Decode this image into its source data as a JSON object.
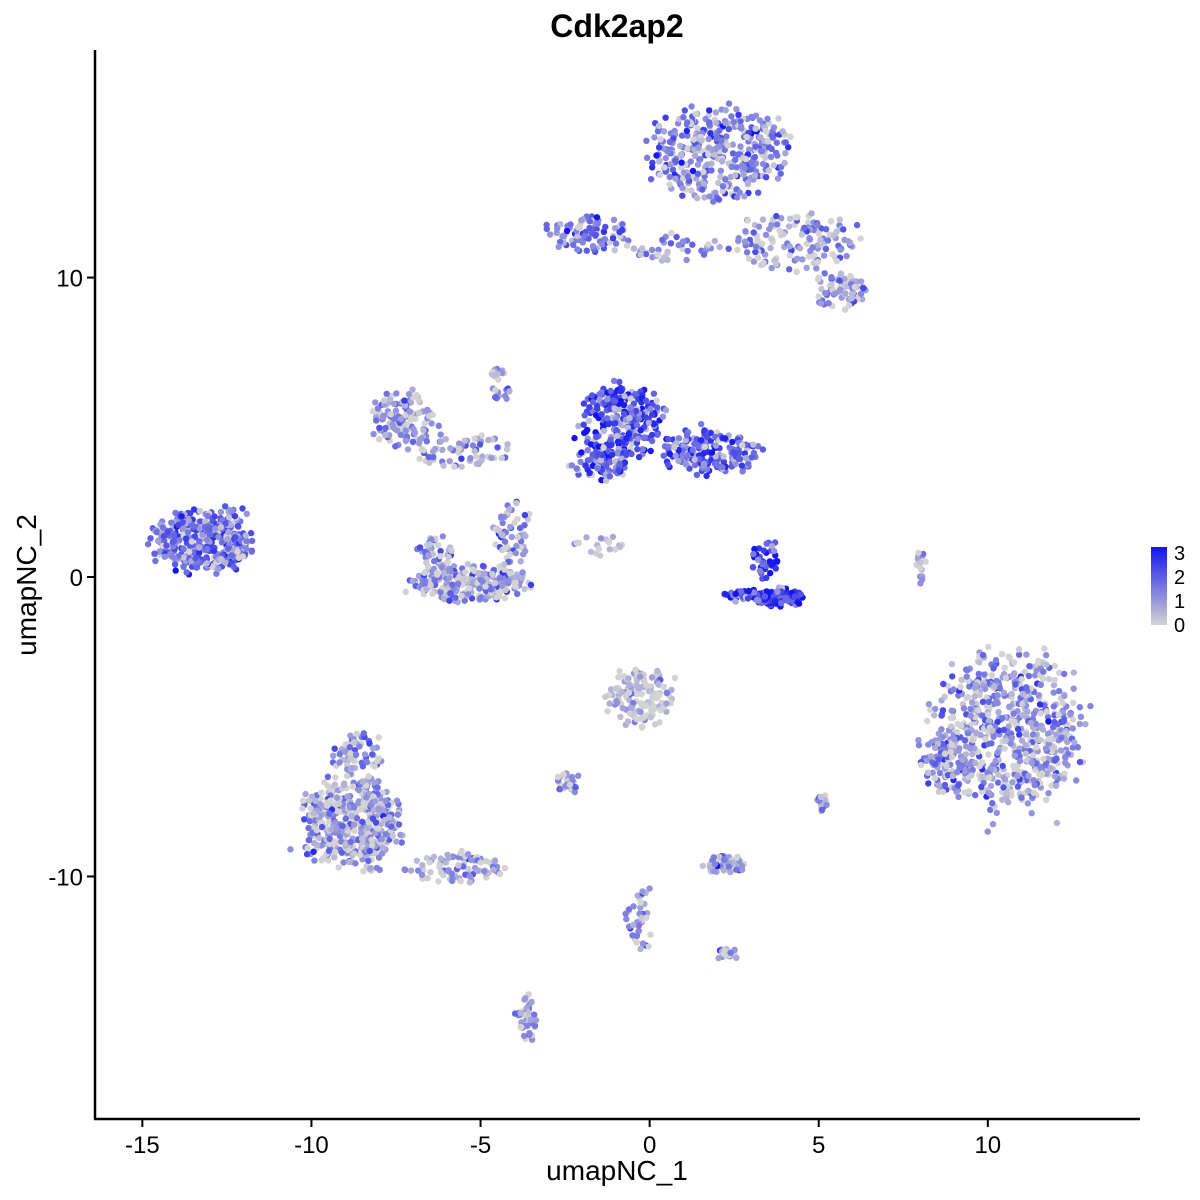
{
  "chart_data": {
    "type": "scatter",
    "title": "Cdk2ap2",
    "xlabel": "umapNC_1",
    "ylabel": "umapNC_2",
    "xlim": [
      -16.4,
      14.5
    ],
    "ylim": [
      -18.1,
      17.6
    ],
    "x_ticks": [
      -15,
      -10,
      -5,
      0,
      5,
      10
    ],
    "x_tick_labels": [
      "-15",
      "-10",
      "-5",
      "0",
      "5",
      "10"
    ],
    "y_ticks": [
      -10,
      0,
      10
    ],
    "y_tick_labels": [
      "-10",
      "0",
      "10"
    ],
    "grid": false,
    "color_scale": {
      "low_color": "#d3d3d3",
      "high_color": "#1414f0",
      "min": 0,
      "max": 3,
      "legend_ticks": [
        "3",
        "2",
        "1",
        "0"
      ],
      "legend_placement": "right"
    },
    "clusters": [
      {
        "name": "top-right",
        "cx": 2.0,
        "cy": 14.2,
        "rx": 2.0,
        "ry": 1.5,
        "n": 380,
        "expr": 1.3
      },
      {
        "name": "top-right-arm",
        "cx": 4.3,
        "cy": 11.2,
        "rx": 1.8,
        "ry": 0.9,
        "n": 140,
        "expr": 1.1
      },
      {
        "name": "top-right-tip",
        "cx": 5.6,
        "cy": 9.5,
        "rx": 0.8,
        "ry": 0.6,
        "n": 70,
        "expr": 1.1
      },
      {
        "name": "top-left-arm",
        "cx": -1.8,
        "cy": 11.5,
        "rx": 1.2,
        "ry": 0.6,
        "n": 90,
        "expr": 1.4
      },
      {
        "name": "top-bridge",
        "cx": 0.8,
        "cy": 11.0,
        "rx": 1.4,
        "ry": 0.4,
        "n": 40,
        "expr": 1.0
      },
      {
        "name": "center-upper",
        "cx": -0.8,
        "cy": 5.2,
        "rx": 1.2,
        "ry": 1.2,
        "n": 260,
        "expr": 2.2
      },
      {
        "name": "center-upper-right",
        "cx": 1.8,
        "cy": 4.2,
        "rx": 1.4,
        "ry": 0.7,
        "n": 180,
        "expr": 1.9
      },
      {
        "name": "center-upper-left",
        "cx": -1.5,
        "cy": 3.8,
        "rx": 0.8,
        "ry": 0.6,
        "n": 80,
        "expr": 2.0
      },
      {
        "name": "left-fan-top",
        "cx": -7.3,
        "cy": 5.3,
        "rx": 0.9,
        "ry": 0.9,
        "n": 120,
        "expr": 1.1
      },
      {
        "name": "left-fan-bridge",
        "cx": -5.6,
        "cy": 4.2,
        "rx": 1.4,
        "ry": 0.6,
        "n": 70,
        "expr": 0.9
      },
      {
        "name": "u-shape",
        "cx": -5.3,
        "cy": -0.2,
        "rx": 1.8,
        "ry": 0.6,
        "n": 240,
        "expr": 1.0
      },
      {
        "name": "u-left-arm",
        "cx": -6.3,
        "cy": 0.8,
        "rx": 0.5,
        "ry": 0.6,
        "n": 50,
        "expr": 0.9
      },
      {
        "name": "u-right-arm",
        "cx": -4.1,
        "cy": 1.4,
        "rx": 0.5,
        "ry": 1.1,
        "n": 60,
        "expr": 0.9
      },
      {
        "name": "far-left",
        "cx": -13.3,
        "cy": 1.2,
        "rx": 1.4,
        "ry": 1.0,
        "n": 330,
        "expr": 1.6
      },
      {
        "name": "far-left-arm",
        "cx": -12.2,
        "cy": 1.6,
        "rx": 0.5,
        "ry": 1.0,
        "n": 40,
        "expr": 1.2
      },
      {
        "name": "bright-small",
        "cx": 3.8,
        "cy": -0.7,
        "rx": 0.7,
        "ry": 0.3,
        "n": 110,
        "expr": 2.7
      },
      {
        "name": "bright-small-arm",
        "cx": 2.8,
        "cy": -0.6,
        "rx": 0.6,
        "ry": 0.2,
        "n": 40,
        "expr": 2.4
      },
      {
        "name": "bright-small-top",
        "cx": 3.4,
        "cy": 0.6,
        "rx": 0.4,
        "ry": 0.6,
        "n": 40,
        "expr": 2.4
      },
      {
        "name": "big-right",
        "cx": 10.6,
        "cy": -5.1,
        "rx": 2.2,
        "ry": 2.6,
        "n": 650,
        "expr": 1.0
      },
      {
        "name": "big-right-left",
        "cx": 8.8,
        "cy": -6.3,
        "rx": 0.8,
        "ry": 1.0,
        "n": 90,
        "expr": 1.1
      },
      {
        "name": "bottom-left",
        "cx": -8.8,
        "cy": -8.2,
        "rx": 1.4,
        "ry": 1.5,
        "n": 440,
        "expr": 0.9
      },
      {
        "name": "bottom-left-top",
        "cx": -8.6,
        "cy": -6.0,
        "rx": 0.7,
        "ry": 0.8,
        "n": 70,
        "expr": 1.1
      },
      {
        "name": "bottom-left-tail",
        "cx": -5.8,
        "cy": -9.7,
        "rx": 1.4,
        "ry": 0.5,
        "n": 90,
        "expr": 0.9
      },
      {
        "name": "center-lower",
        "cx": -0.3,
        "cy": -4.0,
        "rx": 1.0,
        "ry": 1.0,
        "n": 140,
        "expr": 0.4
      },
      {
        "name": "small-a",
        "cx": -2.4,
        "cy": -6.9,
        "rx": 0.4,
        "ry": 0.3,
        "n": 30,
        "expr": 0.9
      },
      {
        "name": "small-b",
        "cx": 2.2,
        "cy": -9.6,
        "rx": 0.6,
        "ry": 0.3,
        "n": 60,
        "expr": 1.0
      },
      {
        "name": "small-c",
        "cx": 5.1,
        "cy": -7.5,
        "rx": 0.2,
        "ry": 0.3,
        "n": 15,
        "expr": 1.1
      },
      {
        "name": "lower-mid-stream",
        "cx": -0.3,
        "cy": -11.3,
        "rx": 0.4,
        "ry": 1.1,
        "n": 40,
        "expr": 1.0
      },
      {
        "name": "lower-right-small",
        "cx": 2.3,
        "cy": -12.6,
        "rx": 0.4,
        "ry": 0.2,
        "n": 20,
        "expr": 0.8
      },
      {
        "name": "bottom-stream",
        "cx": -3.6,
        "cy": -14.8,
        "rx": 0.3,
        "ry": 0.8,
        "n": 45,
        "expr": 1.1
      },
      {
        "name": "mid-streak",
        "cx": -4.4,
        "cy": 6.5,
        "rx": 0.3,
        "ry": 0.8,
        "n": 25,
        "expr": 1.1
      },
      {
        "name": "diag-streak",
        "cx": -1.6,
        "cy": 1.0,
        "rx": 0.8,
        "ry": 0.4,
        "n": 18,
        "expr": 0.4
      },
      {
        "name": "right-streak",
        "cx": 8.0,
        "cy": 0.3,
        "rx": 0.2,
        "ry": 0.6,
        "n": 15,
        "expr": 0.6
      }
    ]
  }
}
